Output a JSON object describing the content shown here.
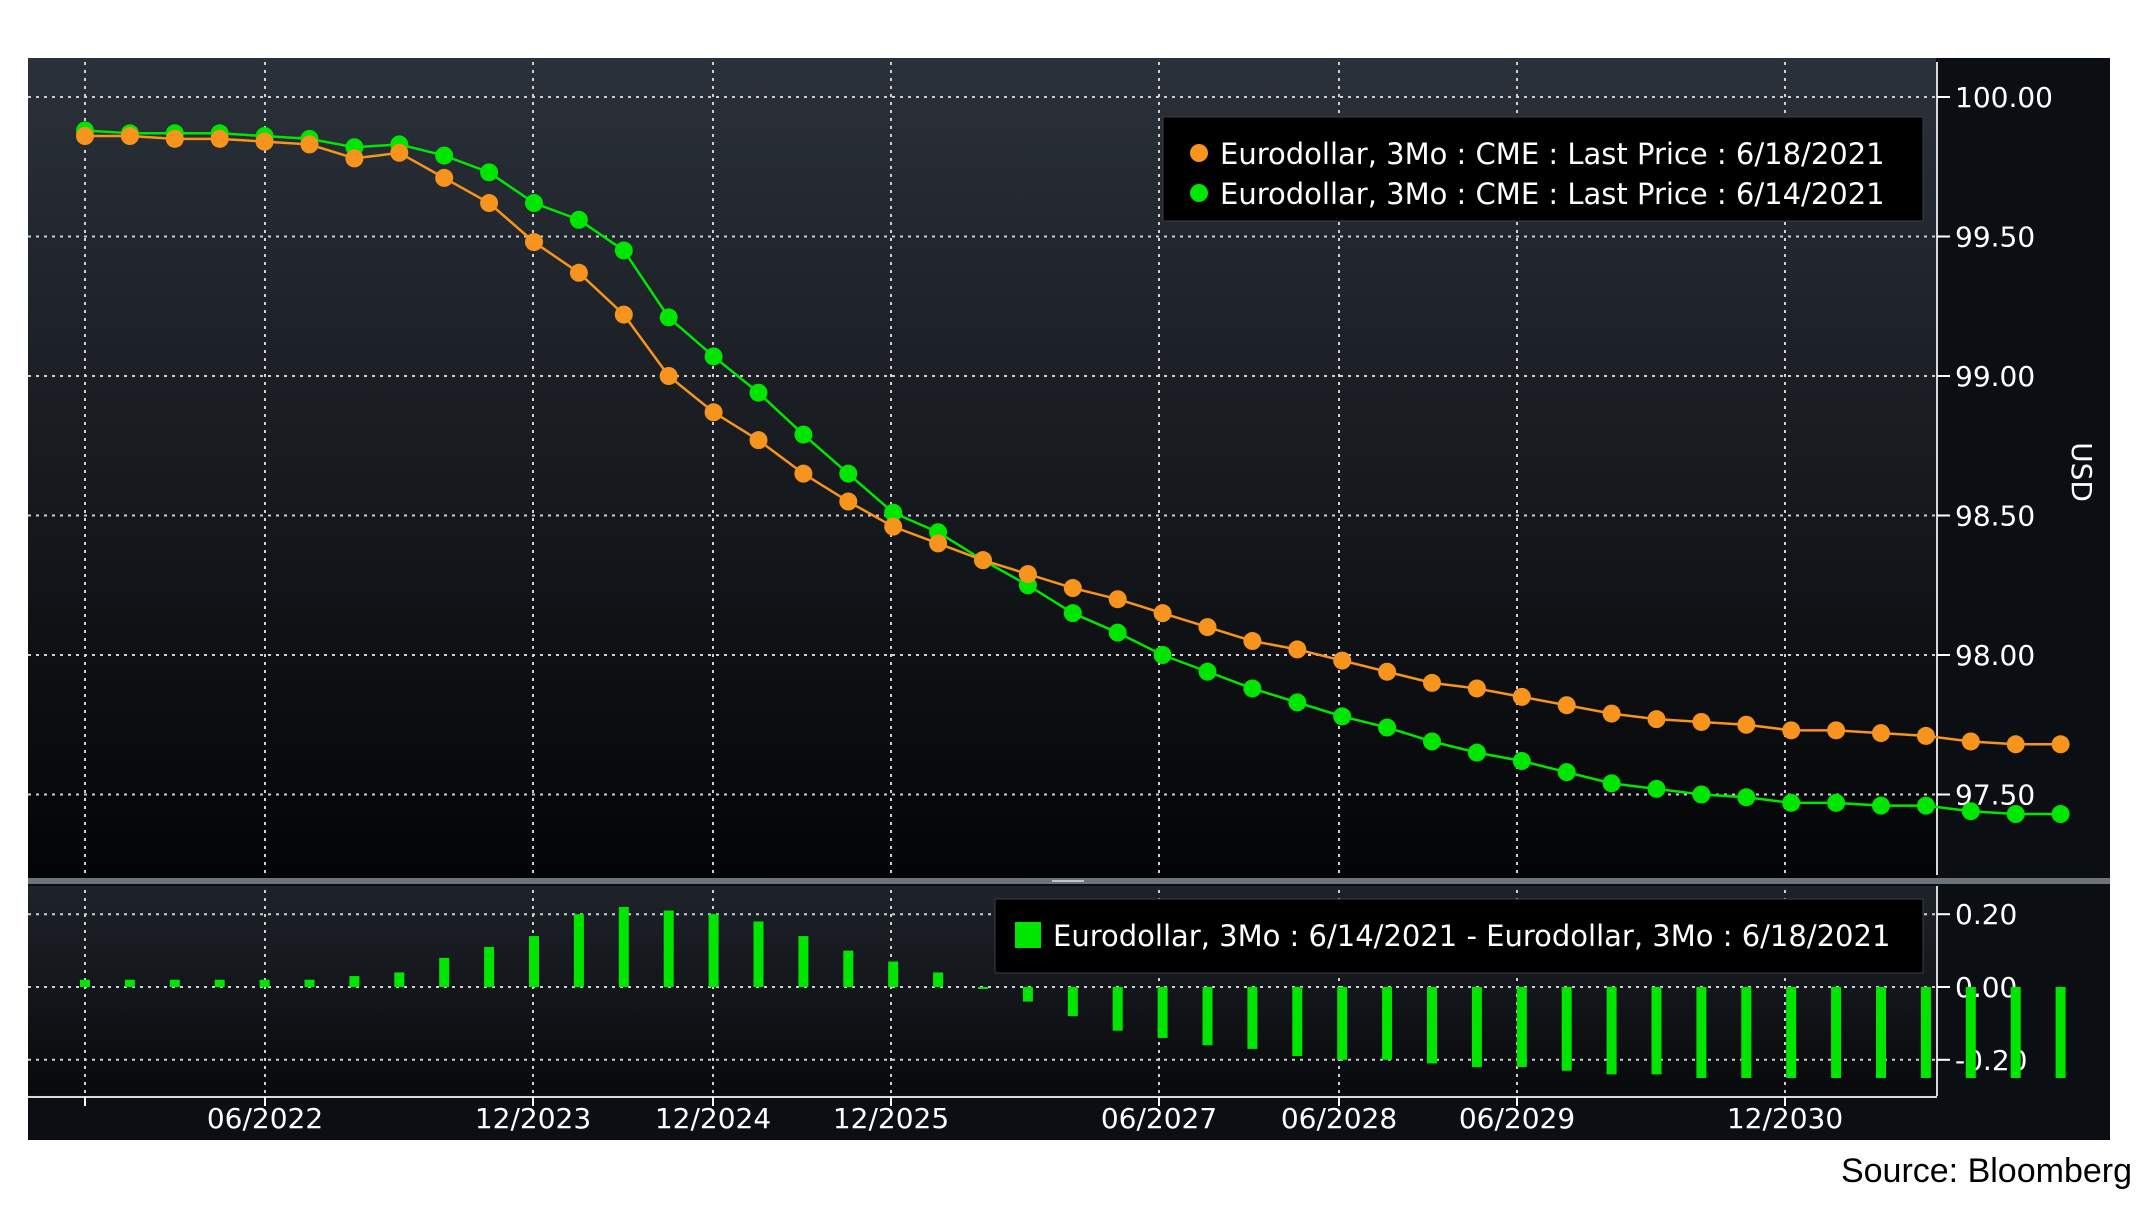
{
  "chart_data": [
    {
      "type": "line",
      "ylabel": "USD",
      "ylim": [
        97.2,
        100.12
      ],
      "yticks": [
        "100.00",
        "99.50",
        "99.00",
        "98.50",
        "98.00",
        "97.50"
      ],
      "xticks": [
        "06/2022",
        "12/2023",
        "12/2024",
        "12/2025",
        "06/2027",
        "06/2028",
        "06/2029",
        "12/2030"
      ],
      "grid": true,
      "legend_position": "top-right",
      "colors": {
        "background": "#0b0f14",
        "grid": "#c8c8c8",
        "orange": "#f7941d",
        "green": "#00e600"
      },
      "series": [
        {
          "name": "Eurodollar, 3Mo : CME : Last Price : 6/18/2021",
          "color": "#f7941d",
          "values": [
            99.86,
            99.86,
            99.85,
            99.85,
            99.84,
            99.83,
            99.78,
            99.8,
            99.71,
            99.62,
            99.48,
            99.37,
            99.22,
            99.0,
            98.87,
            98.77,
            98.65,
            98.55,
            98.46,
            98.4,
            98.34,
            98.29,
            98.24,
            98.2,
            98.15,
            98.1,
            98.05,
            98.02,
            97.98,
            97.94,
            97.9,
            97.88,
            97.85,
            97.82,
            97.79,
            97.77,
            97.76,
            97.75,
            97.73,
            97.73,
            97.72,
            97.71,
            97.69,
            97.68,
            97.68
          ]
        },
        {
          "name": "Eurodollar, 3Mo : CME : Last Price : 6/14/2021",
          "color": "#00e600",
          "values": [
            99.88,
            99.87,
            99.87,
            99.87,
            99.86,
            99.85,
            99.82,
            99.83,
            99.79,
            99.73,
            99.62,
            99.56,
            99.45,
            99.21,
            99.07,
            98.94,
            98.79,
            98.65,
            98.51,
            98.44,
            98.34,
            98.25,
            98.15,
            98.08,
            98.0,
            97.94,
            97.88,
            97.83,
            97.78,
            97.74,
            97.69,
            97.65,
            97.62,
            97.58,
            97.54,
            97.52,
            97.5,
            97.49,
            97.47,
            97.47,
            97.46,
            97.46,
            97.44,
            97.43,
            97.43
          ]
        }
      ]
    },
    {
      "type": "bar",
      "ylim": [
        -0.3,
        0.27
      ],
      "yticks": [
        "0.20",
        "0.00",
        "-0.20"
      ],
      "legend_position": "top-right",
      "series": [
        {
          "name": "Eurodollar, 3Mo : 6/14/2021 - Eurodollar, 3Mo : 6/18/2021",
          "color": "#00e600",
          "values": [
            0.02,
            0.02,
            0.02,
            0.02,
            0.02,
            0.02,
            0.03,
            0.04,
            0.08,
            0.11,
            0.14,
            0.2,
            0.22,
            0.21,
            0.2,
            0.18,
            0.14,
            0.1,
            0.07,
            0.04,
            0.0,
            -0.04,
            -0.08,
            -0.12,
            -0.14,
            -0.16,
            -0.17,
            -0.19,
            -0.2,
            -0.2,
            -0.21,
            -0.22,
            -0.22,
            -0.23,
            -0.24,
            -0.24,
            -0.25,
            -0.25,
            -0.25,
            -0.25,
            -0.25,
            -0.25,
            -0.25,
            -0.25,
            -0.25
          ]
        }
      ]
    }
  ],
  "source_text": "Source: Bloomberg"
}
